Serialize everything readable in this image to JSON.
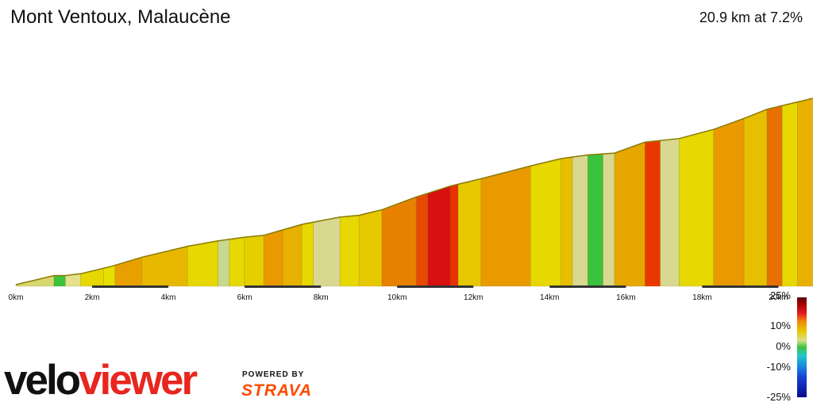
{
  "header": {
    "title": "Mont Ventoux, Malaucène",
    "summary": "20.9 km at 7.2%"
  },
  "chart_data": {
    "type": "area",
    "title": "Mont Ventoux, Malaucène",
    "xlabel": "",
    "ylabel": "",
    "x_unit": "km",
    "xlim": [
      0,
      21
    ],
    "x_ticks": [
      "0km",
      "2km",
      "4km",
      "6km",
      "8km",
      "10km",
      "12km",
      "14km",
      "16km",
      "18km",
      "20km"
    ],
    "elevation_profile_relative": [
      [
        0,
        0.0
      ],
      [
        1.0,
        0.05
      ],
      [
        1.3,
        0.05
      ],
      [
        1.7,
        0.06
      ],
      [
        2.5,
        0.1
      ],
      [
        3.3,
        0.15
      ],
      [
        4.5,
        0.21
      ],
      [
        5.3,
        0.24
      ],
      [
        6.0,
        0.26
      ],
      [
        6.5,
        0.27
      ],
      [
        7.0,
        0.3
      ],
      [
        7.5,
        0.33
      ],
      [
        8.5,
        0.37
      ],
      [
        9.0,
        0.38
      ],
      [
        9.6,
        0.41
      ],
      [
        10.5,
        0.48
      ],
      [
        11.4,
        0.54
      ],
      [
        12.2,
        0.58
      ],
      [
        13.5,
        0.65
      ],
      [
        14.3,
        0.69
      ],
      [
        15.0,
        0.71
      ],
      [
        15.7,
        0.72
      ],
      [
        16.5,
        0.78
      ],
      [
        17.4,
        0.8
      ],
      [
        18.3,
        0.85
      ],
      [
        19.1,
        0.91
      ],
      [
        19.7,
        0.96
      ],
      [
        20.5,
        1.0
      ],
      [
        20.9,
        1.02
      ]
    ],
    "gradient_segments": [
      {
        "from": 0.0,
        "to": 1.0,
        "color": "#d8d870"
      },
      {
        "from": 1.0,
        "to": 1.3,
        "color": "#3cc23c"
      },
      {
        "from": 1.3,
        "to": 1.7,
        "color": "#e6e08a"
      },
      {
        "from": 1.7,
        "to": 2.3,
        "color": "#e6d800"
      },
      {
        "from": 2.3,
        "to": 2.6,
        "color": "#e6e000"
      },
      {
        "from": 2.6,
        "to": 3.3,
        "color": "#e8a000"
      },
      {
        "from": 3.3,
        "to": 4.5,
        "color": "#e8b800"
      },
      {
        "from": 4.5,
        "to": 5.3,
        "color": "#e6d800"
      },
      {
        "from": 5.3,
        "to": 5.6,
        "color": "#c8d890"
      },
      {
        "from": 5.6,
        "to": 6.0,
        "color": "#e6d800"
      },
      {
        "from": 6.0,
        "to": 6.5,
        "color": "#e6cf00"
      },
      {
        "from": 6.5,
        "to": 7.0,
        "color": "#e89a00"
      },
      {
        "from": 7.0,
        "to": 7.5,
        "color": "#e8b000"
      },
      {
        "from": 7.5,
        "to": 7.8,
        "color": "#e6d800"
      },
      {
        "from": 7.8,
        "to": 8.5,
        "color": "#d8d890"
      },
      {
        "from": 8.5,
        "to": 9.0,
        "color": "#e6d800"
      },
      {
        "from": 9.0,
        "to": 9.6,
        "color": "#e6c800"
      },
      {
        "from": 9.6,
        "to": 10.5,
        "color": "#e88000"
      },
      {
        "from": 10.5,
        "to": 10.8,
        "color": "#e64a00"
      },
      {
        "from": 10.8,
        "to": 11.4,
        "color": "#d81010"
      },
      {
        "from": 11.4,
        "to": 11.6,
        "color": "#e83000"
      },
      {
        "from": 11.6,
        "to": 12.2,
        "color": "#e6c800"
      },
      {
        "from": 12.2,
        "to": 13.5,
        "color": "#e89a00"
      },
      {
        "from": 13.5,
        "to": 14.3,
        "color": "#e6d800"
      },
      {
        "from": 14.3,
        "to": 14.6,
        "color": "#e6c000"
      },
      {
        "from": 14.6,
        "to": 15.0,
        "color": "#d8d890"
      },
      {
        "from": 15.0,
        "to": 15.4,
        "color": "#3cc23c"
      },
      {
        "from": 15.4,
        "to": 15.7,
        "color": "#d8d890"
      },
      {
        "from": 15.7,
        "to": 16.5,
        "color": "#e6a800"
      },
      {
        "from": 16.5,
        "to": 16.9,
        "color": "#e83800"
      },
      {
        "from": 16.9,
        "to": 17.4,
        "color": "#d8d890"
      },
      {
        "from": 17.4,
        "to": 18.3,
        "color": "#e6d800"
      },
      {
        "from": 18.3,
        "to": 19.1,
        "color": "#e89a00"
      },
      {
        "from": 19.1,
        "to": 19.7,
        "color": "#e6c000"
      },
      {
        "from": 19.7,
        "to": 20.1,
        "color": "#e87000"
      },
      {
        "from": 20.1,
        "to": 20.5,
        "color": "#e6d800"
      },
      {
        "from": 20.5,
        "to": 20.9,
        "color": "#e8b000"
      }
    ],
    "legend": {
      "labels": [
        "25%",
        "10%",
        "0%",
        "-10%",
        "-25%"
      ],
      "placement": "bottom-right"
    }
  },
  "branding": {
    "velo": "velo",
    "viewer": "viewer",
    "powered_by": "POWERED BY",
    "strava": "STRAVA"
  }
}
